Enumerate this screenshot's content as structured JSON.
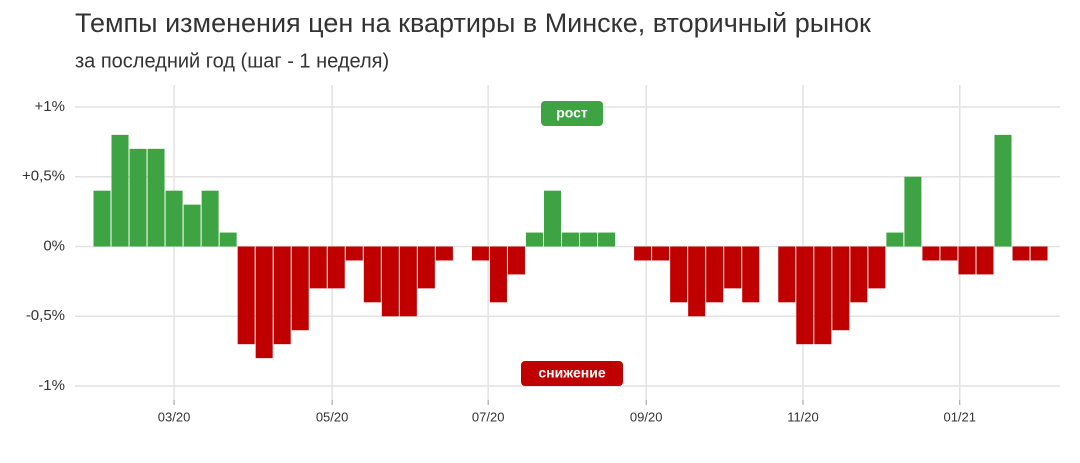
{
  "chart_data": {
    "type": "bar",
    "title": "Темпы изменения цен на квартиры в Минске, вторичный рынок",
    "subtitle": "за последний год (шаг - 1 неделя)",
    "categories": [
      null,
      null,
      null,
      null,
      null,
      null,
      null,
      null,
      null,
      null,
      null,
      null,
      null,
      null,
      null,
      null,
      null,
      null,
      null,
      null,
      null,
      null,
      null,
      null,
      null,
      null,
      null,
      null,
      null,
      null,
      null,
      null,
      null,
      null,
      null,
      null,
      null,
      null,
      null,
      null,
      null,
      null,
      null,
      null,
      null,
      null,
      null,
      null,
      null,
      null,
      null,
      null,
      null
    ],
    "values": [
      0.4,
      0.8,
      0.7,
      0.7,
      0.4,
      0.3,
      0.4,
      0.1,
      -0.7,
      -0.8,
      -0.7,
      -0.6,
      -0.3,
      -0.3,
      -0.1,
      -0.4,
      -0.5,
      -0.5,
      -0.3,
      -0.1,
      0,
      -0.1,
      -0.4,
      -0.2,
      0.1,
      0.4,
      0.1,
      0.1,
      0.1,
      0,
      -0.1,
      -0.1,
      -0.4,
      -0.5,
      -0.4,
      -0.3,
      -0.4,
      0,
      -0.4,
      -0.7,
      -0.7,
      -0.6,
      -0.4,
      -0.3,
      0.1,
      0.5,
      -0.1,
      -0.1,
      -0.2,
      -0.2,
      0.8,
      -0.1,
      -0.1
    ],
    "positive_color": "#3ea343",
    "negative_color": "#c00000",
    "ylim": [
      -1.1,
      1.05
    ],
    "yticks": [
      {
        "value": -1,
        "label": "-1%"
      },
      {
        "value": -0.5,
        "label": "-0,5%"
      },
      {
        "value": 0,
        "label": "0%"
      },
      {
        "value": 0.5,
        "label": "+0,5%"
      },
      {
        "value": 1,
        "label": "+1%"
      }
    ],
    "xticks": [
      {
        "value": 4,
        "label": "03/20"
      },
      {
        "value": 12.77,
        "label": "05/20"
      },
      {
        "value": 21.43,
        "label": "07/20"
      },
      {
        "value": 30.2,
        "label": "09/20"
      },
      {
        "value": 38.9,
        "label": "11/20"
      },
      {
        "value": 47.6,
        "label": "01/21"
      }
    ],
    "annotations": [
      "рост",
      "снижение"
    ],
    "grid": true
  }
}
